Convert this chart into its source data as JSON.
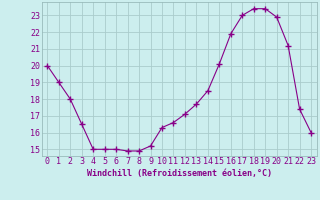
{
  "x": [
    0,
    1,
    2,
    3,
    4,
    5,
    6,
    7,
    8,
    9,
    10,
    11,
    12,
    13,
    14,
    15,
    16,
    17,
    18,
    19,
    20,
    21,
    22,
    23
  ],
  "y": [
    20,
    19,
    18,
    16.5,
    15,
    15,
    15,
    14.9,
    14.9,
    15.2,
    16.3,
    16.6,
    17.1,
    17.7,
    18.5,
    20.1,
    21.9,
    23.0,
    23.4,
    23.4,
    22.9,
    21.2,
    17.4,
    16.0
  ],
  "line_color": "#880088",
  "marker": "+",
  "marker_size": 4,
  "marker_linewidth": 1.0,
  "background_color": "#cceeee",
  "grid_color": "#aacccc",
  "xlabel": "Windchill (Refroidissement éolien,°C)",
  "xlabel_fontsize": 6.0,
  "ylabel_ticks": [
    15,
    16,
    17,
    18,
    19,
    20,
    21,
    22,
    23
  ],
  "xtick_labels": [
    "0",
    "1",
    "2",
    "3",
    "4",
    "5",
    "6",
    "7",
    "8",
    "9",
    "10",
    "11",
    "12",
    "13",
    "14",
    "15",
    "16",
    "17",
    "18",
    "19",
    "20",
    "21",
    "22",
    "23"
  ],
  "ylim": [
    14.6,
    23.8
  ],
  "xlim": [
    -0.5,
    23.5
  ],
  "tick_fontsize": 6.0,
  "tick_color": "#880088",
  "label_color": "#880088",
  "line_width": 0.8
}
